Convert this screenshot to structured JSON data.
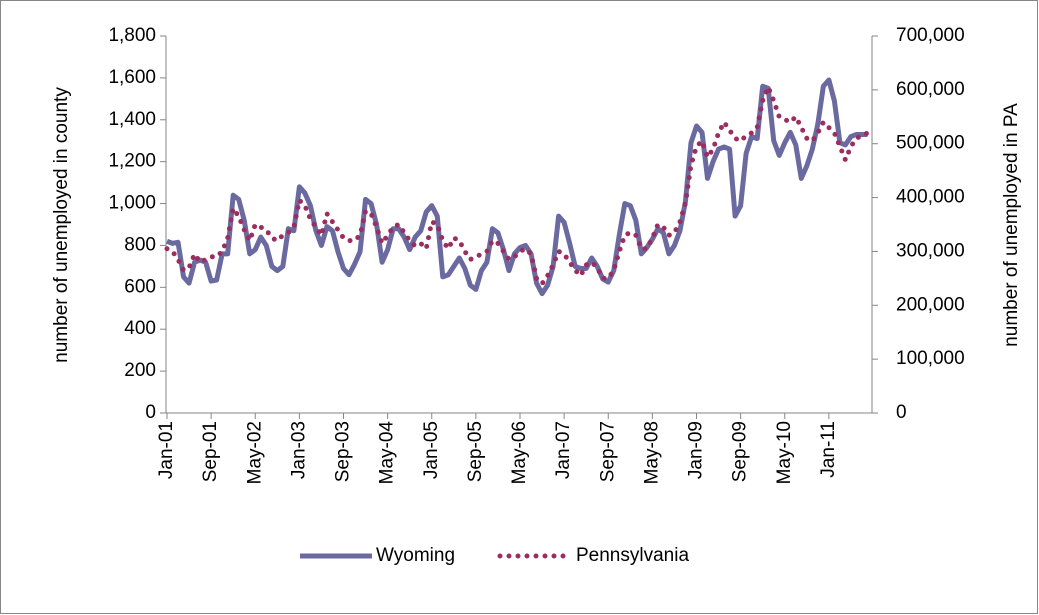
{
  "chart_data": {
    "type": "line",
    "y_label": "number of unemployed in county",
    "y2_label": "number of unemployed in PA",
    "categories": [
      "Jan-01",
      null,
      null,
      null,
      null,
      null,
      null,
      null,
      "Sep-01",
      null,
      null,
      null,
      null,
      null,
      null,
      null,
      "May-02",
      null,
      null,
      null,
      null,
      null,
      null,
      null,
      "Jan-03",
      null,
      null,
      null,
      null,
      null,
      null,
      null,
      "Sep-03",
      null,
      null,
      null,
      null,
      null,
      null,
      null,
      "May-04",
      null,
      null,
      null,
      null,
      null,
      null,
      null,
      "Jan-05",
      null,
      null,
      null,
      null,
      null,
      null,
      null,
      "Sep-05",
      null,
      null,
      null,
      null,
      null,
      null,
      null,
      "May-06",
      null,
      null,
      null,
      null,
      null,
      null,
      null,
      "Jan-07",
      null,
      null,
      null,
      null,
      null,
      null,
      null,
      "Sep-07",
      null,
      null,
      null,
      null,
      null,
      null,
      null,
      "May-08",
      null,
      null,
      null,
      null,
      null,
      null,
      null,
      "Jan-09",
      null,
      null,
      null,
      null,
      null,
      null,
      null,
      "Sep-09",
      null,
      null,
      null,
      null,
      null,
      null,
      null,
      "May-10",
      null,
      null,
      null,
      null,
      null,
      null,
      null,
      "Jan-11",
      null,
      null,
      null,
      null,
      null,
      null,
      null
    ],
    "series": [
      {
        "name": "Wyoming",
        "color": "#6b6aa0",
        "style": "solid",
        "values": [
          820,
          810,
          815,
          650,
          620,
          720,
          730,
          720,
          630,
          635,
          760,
          760,
          1040,
          1020,
          920,
          760,
          780,
          840,
          800,
          700,
          680,
          700,
          880,
          870,
          1080,
          1050,
          990,
          870,
          800,
          890,
          870,
          770,
          690,
          660,
          710,
          770,
          1020,
          1000,
          900,
          720,
          780,
          880,
          880,
          840,
          780,
          840,
          870,
          960,
          990,
          940,
          650,
          660,
          700,
          740,
          690,
          610,
          590,
          680,
          720,
          880,
          860,
          780,
          680,
          760,
          790,
          800,
          760,
          620,
          570,
          610,
          700,
          940,
          910,
          810,
          700,
          690,
          690,
          740,
          700,
          640,
          625,
          680,
          850,
          1000,
          990,
          920,
          760,
          790,
          830,
          880,
          860,
          760,
          800,
          870,
          1010,
          1290,
          1370,
          1340,
          1120,
          1200,
          1260,
          1270,
          1260,
          940,
          990,
          1240,
          1320,
          1310,
          1560,
          1550,
          1300,
          1230,
          1290,
          1340,
          1280,
          1120,
          1180,
          1260,
          1380,
          1560,
          1590,
          1490,
          1290,
          1280,
          1320,
          1330,
          1330,
          1330
        ]
      },
      {
        "name": "Pennsylvania",
        "color": "#9b2d5f",
        "style": "dotted",
        "axis": "y2",
        "values": [
          305000,
          300000,
          285000,
          265000,
          270000,
          295000,
          280000,
          285000,
          290000,
          290000,
          300000,
          325000,
          380000,
          365000,
          340000,
          320000,
          350000,
          345000,
          340000,
          325000,
          320000,
          330000,
          335000,
          345000,
          395000,
          385000,
          360000,
          345000,
          330000,
          370000,
          355000,
          340000,
          325000,
          320000,
          320000,
          330000,
          375000,
          370000,
          345000,
          315000,
          330000,
          345000,
          350000,
          335000,
          320000,
          310000,
          315000,
          305000,
          355000,
          350000,
          320000,
          305000,
          325000,
          320000,
          300000,
          285000,
          290000,
          295000,
          300000,
          320000,
          315000,
          300000,
          285000,
          290000,
          300000,
          305000,
          295000,
          250000,
          240000,
          255000,
          275000,
          300000,
          295000,
          280000,
          265000,
          255000,
          275000,
          280000,
          270000,
          250000,
          250000,
          265000,
          300000,
          330000,
          335000,
          330000,
          305000,
          305000,
          325000,
          350000,
          345000,
          330000,
          335000,
          355000,
          390000,
          460000,
          495000,
          505000,
          475000,
          490000,
          520000,
          540000,
          525000,
          510000,
          505000,
          515000,
          520000,
          530000,
          580000,
          605000,
          580000,
          550000,
          545000,
          540000,
          550000,
          530000,
          510000,
          505000,
          520000,
          540000,
          530000,
          520000,
          495000,
          470000,
          495000,
          510000,
          515000,
          520000
        ]
      }
    ],
    "ylim": [
      0,
      1800
    ],
    "yticks": [
      0,
      200,
      400,
      600,
      800,
      {
        "value": 1000,
        "label": "1,000"
      },
      {
        "value": 1200,
        "label": "1,200"
      },
      {
        "value": 1400,
        "label": "1,400"
      },
      {
        "value": 1600,
        "label": "1,600"
      },
      {
        "value": 1800,
        "label": "1,800"
      }
    ],
    "y2lim": [
      0,
      700000
    ],
    "y2ticks": [
      0,
      {
        "value": 100000,
        "label": "100,000"
      },
      {
        "value": 200000,
        "label": "200,000"
      },
      {
        "value": 300000,
        "label": "300,000"
      },
      {
        "value": 400000,
        "label": "400,000"
      },
      {
        "value": 500000,
        "label": "500,000"
      },
      {
        "value": 600000,
        "label": "600,000"
      },
      {
        "value": 700000,
        "label": "700,000"
      }
    ],
    "grid": false,
    "legend": "bottom"
  }
}
